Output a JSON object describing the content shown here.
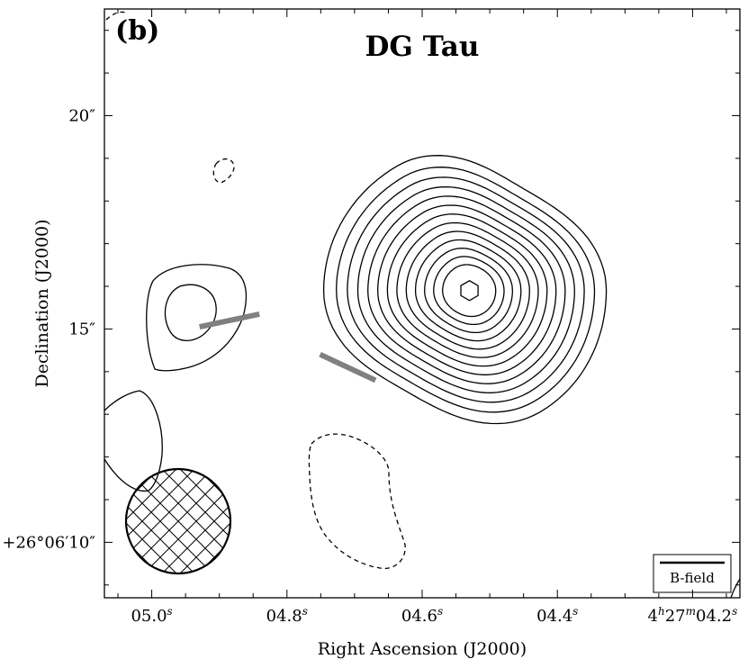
{
  "chart_data": {
    "type": "contour",
    "panel_label": "(b)",
    "title": "DG Tau",
    "xlabel": "Right Ascension (J2000)",
    "ylabel": "Declination (J2000)",
    "x_axis": {
      "unit": "seconds of RA offset",
      "range": [
        5.07,
        4.13
      ],
      "ticks": [
        {
          "value": 5.0,
          "label": "05.0",
          "sup": "s"
        },
        {
          "value": 4.8,
          "label": "04.8",
          "sup": "s"
        },
        {
          "value": 4.6,
          "label": "04.6",
          "sup": "s"
        },
        {
          "value": 4.4,
          "label": "04.4",
          "sup": "s"
        },
        {
          "value": 4.2,
          "label_parts": [
            [
              "4",
              "h"
            ],
            [
              "27",
              "m"
            ],
            [
              "04.2",
              "s"
            ]
          ]
        }
      ]
    },
    "y_axis": {
      "unit": "arcsec",
      "range": [
        8.7,
        22.5
      ],
      "ticks": [
        {
          "value": 20,
          "label": "20″"
        },
        {
          "value": 15,
          "label": "15″"
        },
        {
          "value": 10,
          "label": "+26°06′10″"
        }
      ]
    },
    "source_center": [
      4.53,
      15.9
    ],
    "main_source_levels": 14,
    "b_field_vectors": [
      {
        "ra": 4.885,
        "dec": 15.2,
        "angle_deg": -12
      },
      {
        "ra": 4.71,
        "dec": 14.1,
        "angle_deg": 25
      }
    ],
    "legend": {
      "label": "B-field",
      "position": "bottom-right"
    },
    "beam": {
      "ra": 4.947,
      "dec": 10.2,
      "position": "bottom-left",
      "hatched": true
    }
  },
  "colors": {
    "contour": "#000000",
    "vector": "#808080",
    "background": "#ffffff"
  }
}
